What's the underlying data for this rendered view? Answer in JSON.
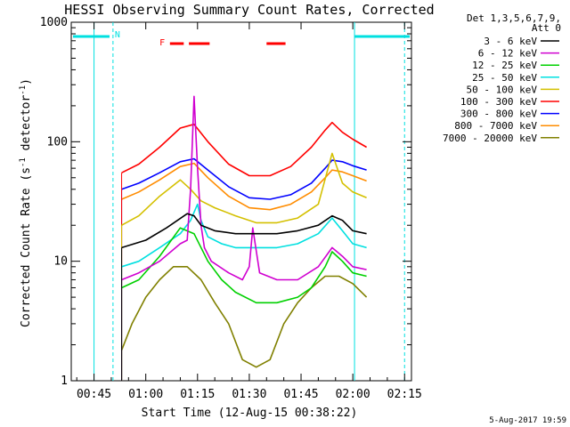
{
  "chart_data": {
    "type": "line",
    "title": "HESSI Observing Summary Count Rates, Corrected",
    "xlabel": "Start Time (12-Aug-15 00:38:22)",
    "ylabel": "Corrected Count Rate (s-1 detector-1)",
    "ylabel_parts": {
      "main": "Corrected Count Rate (s",
      "exp1": "-1",
      "mid": " detector",
      "exp2": "-1",
      "end": ")"
    },
    "y_scale": "log",
    "ylim": [
      1,
      1000
    ],
    "xlim_minutes": [
      38.4,
      137
    ],
    "x_ticks": [
      {
        "minute": 45,
        "label": "00:45"
      },
      {
        "minute": 60,
        "label": "01:00"
      },
      {
        "minute": 75,
        "label": "01:15"
      },
      {
        "minute": 90,
        "label": "01:30"
      },
      {
        "minute": 105,
        "label": "01:45"
      },
      {
        "minute": 120,
        "label": "02:00"
      },
      {
        "minute": 135,
        "label": "02:15"
      }
    ],
    "y_ticks": [
      {
        "value": 1,
        "label": "1"
      },
      {
        "value": 10,
        "label": "10"
      },
      {
        "value": 100,
        "label": "100"
      },
      {
        "value": 1000,
        "label": "1000"
      }
    ],
    "legend_header": [
      "Det 1,3,5,6,7,9,",
      "Att 0"
    ],
    "legend_position": "right",
    "series": [
      {
        "name": "3 - 6 keV",
        "color": "#000000",
        "x": [
          53,
          60,
          66,
          72,
          74,
          76,
          80,
          86,
          92,
          98,
          104,
          110,
          114,
          117,
          120,
          124
        ],
        "y": [
          13,
          15,
          19,
          25,
          24,
          20,
          18,
          17,
          17,
          17,
          18,
          20,
          24,
          22,
          18,
          17
        ]
      },
      {
        "name": "6 - 12 keV",
        "color": "#d000d0",
        "x": [
          53,
          58,
          64,
          70,
          72,
          73,
          74,
          75,
          76,
          77,
          79,
          84,
          88,
          90,
          91,
          93,
          98,
          104,
          110,
          114,
          117,
          120,
          124
        ],
        "y": [
          7,
          8,
          10,
          14,
          15,
          40,
          240,
          60,
          20,
          13,
          10,
          8,
          7,
          9,
          19,
          8,
          7,
          7,
          9,
          13,
          11,
          9,
          8.5
        ]
      },
      {
        "name": "12 - 25 keV",
        "color": "#00d000",
        "x": [
          53,
          58,
          64,
          70,
          74,
          78,
          82,
          86,
          92,
          98,
          104,
          108,
          112,
          114,
          117,
          120,
          124
        ],
        "y": [
          6,
          7,
          11,
          19,
          17,
          10,
          7,
          5.5,
          4.5,
          4.5,
          5,
          6,
          9,
          12,
          10,
          8,
          7.5
        ]
      },
      {
        "name": "25 - 50 keV",
        "color": "#00e0e0",
        "x": [
          53,
          58,
          64,
          70,
          73,
          75,
          76,
          78,
          82,
          86,
          92,
          98,
          104,
          110,
          114,
          117,
          120,
          124
        ],
        "y": [
          9,
          10,
          13,
          17,
          22,
          30,
          22,
          16,
          14,
          13,
          13,
          13,
          14,
          17,
          23,
          18,
          14,
          13
        ]
      },
      {
        "name": "50 - 100 keV",
        "color": "#d4c000",
        "x": [
          53,
          58,
          64,
          70,
          73,
          76,
          80,
          86,
          92,
          98,
          104,
          110,
          114,
          117,
          120,
          124
        ],
        "y": [
          20,
          24,
          35,
          48,
          40,
          32,
          28,
          24,
          21,
          21,
          23,
          30,
          80,
          45,
          38,
          34
        ]
      },
      {
        "name": "100 - 300 keV",
        "color": "#ff0000",
        "x": [
          53,
          58,
          64,
          70,
          74,
          78,
          84,
          90,
          96,
          102,
          108,
          112,
          114,
          117,
          120,
          124
        ],
        "y": [
          55,
          65,
          90,
          130,
          140,
          100,
          65,
          52,
          52,
          62,
          90,
          125,
          145,
          120,
          105,
          90
        ]
      },
      {
        "name": "300 - 800 keV",
        "color": "#0000ff",
        "x": [
          53,
          58,
          64,
          70,
          74,
          78,
          84,
          90,
          96,
          102,
          108,
          112,
          114,
          117,
          120,
          124
        ],
        "y": [
          40,
          45,
          55,
          68,
          72,
          58,
          42,
          34,
          33,
          36,
          45,
          60,
          70,
          68,
          63,
          58
        ]
      },
      {
        "name": "800 - 7000 keV",
        "color": "#ff8c00",
        "x": [
          53,
          58,
          64,
          70,
          74,
          78,
          84,
          90,
          96,
          102,
          108,
          112,
          114,
          117,
          120,
          124
        ],
        "y": [
          33,
          38,
          48,
          62,
          66,
          50,
          35,
          28,
          27,
          30,
          38,
          50,
          58,
          56,
          52,
          47
        ]
      },
      {
        "name": "7000 - 20000 keV",
        "color": "#808000",
        "x": [
          53,
          56,
          60,
          64,
          68,
          72,
          76,
          80,
          84,
          88,
          92,
          96,
          100,
          104,
          108,
          112,
          116,
          120,
          124
        ],
        "y": [
          1.8,
          3,
          5,
          7,
          9,
          9,
          7,
          4.5,
          3,
          1.5,
          1.3,
          1.5,
          3,
          4.5,
          6,
          7.5,
          7.5,
          6.5,
          5
        ]
      }
    ],
    "annotations": {
      "night_label": "N",
      "flare_label": "F"
    }
  },
  "footer": "5-Aug-2017 19:59"
}
